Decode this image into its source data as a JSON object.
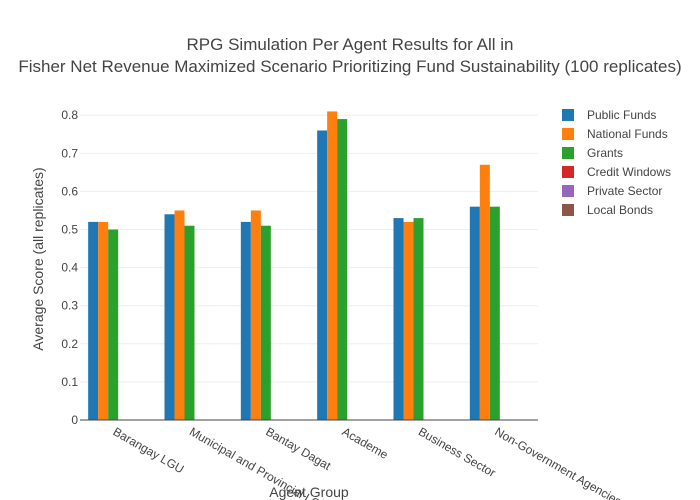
{
  "chart_data": {
    "type": "bar",
    "title_line1": "RPG Simulation Per Agent Results for All in",
    "title_line2": "Fisher Net Revenue Maximized Scenario Prioritizing Fund Sustainability (100 replicates)",
    "xlabel": "Agent Group",
    "ylabel": "Average Score (all replicates)",
    "ylim": [
      0,
      0.84
    ],
    "yticks": [
      "0",
      "0.1",
      "0.2",
      "0.3",
      "0.4",
      "0.5",
      "0.6",
      "0.7",
      "0.8"
    ],
    "grid": true,
    "legend_position": "top-right",
    "categories": [
      "Barangay LGU",
      "Municipal and Provincial LGU",
      "Bantay Dagat",
      "Academe",
      "Business Sector",
      "Non-Government Agencies"
    ],
    "series": [
      {
        "name": "Public Funds",
        "color": "#1f77b4",
        "values": [
          0.52,
          0.54,
          0.52,
          0.76,
          0.53,
          0.56
        ]
      },
      {
        "name": "National Funds",
        "color": "#ff7f0e",
        "values": [
          0.52,
          0.55,
          0.55,
          0.81,
          0.52,
          0.67
        ]
      },
      {
        "name": "Grants",
        "color": "#2ca02c",
        "values": [
          0.5,
          0.51,
          0.51,
          0.79,
          0.53,
          0.56
        ]
      },
      {
        "name": "Credit Windows",
        "color": "#d62728",
        "values": [
          0,
          0,
          0,
          0,
          0,
          0
        ]
      },
      {
        "name": "Private Sector",
        "color": "#9467bd",
        "values": [
          0,
          0,
          0,
          0,
          0,
          0
        ]
      },
      {
        "name": "Local Bonds",
        "color": "#8c564b",
        "values": [
          0,
          0,
          0,
          0,
          0,
          0
        ]
      }
    ]
  }
}
